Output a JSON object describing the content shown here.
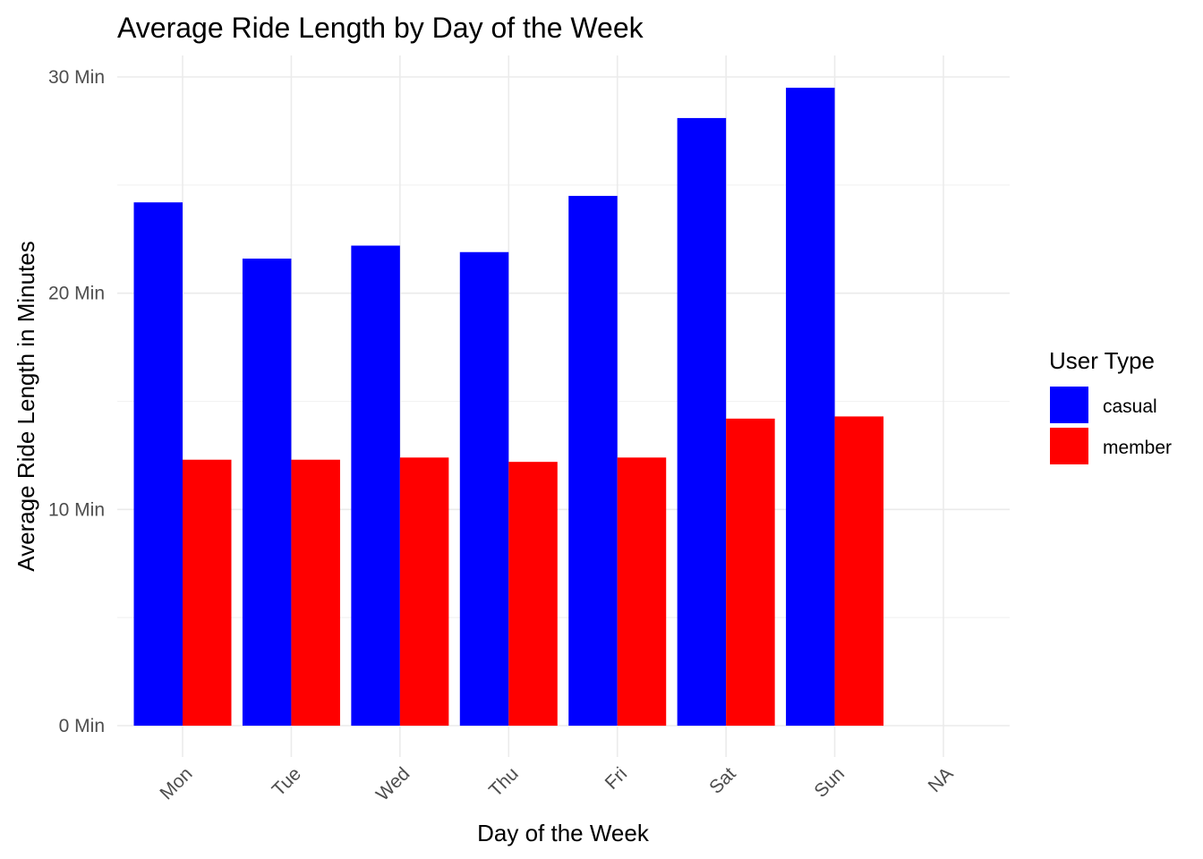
{
  "chart_data": {
    "type": "bar",
    "title": "Average Ride Length by Day of the Week",
    "xlabel": "Day of the Week",
    "ylabel": "Average Ride Length in Minutes",
    "categories": [
      "Mon",
      "Tue",
      "Wed",
      "Thu",
      "Fri",
      "Sat",
      "Sun",
      "NA"
    ],
    "series": [
      {
        "name": "casual",
        "color": "#0000ff",
        "values": [
          24.2,
          21.6,
          22.2,
          21.9,
          24.5,
          28.1,
          29.5,
          null
        ]
      },
      {
        "name": "member",
        "color": "#ff0000",
        "values": [
          12.3,
          12.3,
          12.4,
          12.2,
          12.4,
          14.2,
          14.3,
          null
        ]
      }
    ],
    "ylim": [
      0,
      30
    ],
    "y_ticks": [
      {
        "value": 0,
        "label": "0 Min"
      },
      {
        "value": 10,
        "label": "10 Min"
      },
      {
        "value": 20,
        "label": "20 Min"
      },
      {
        "value": 30,
        "label": "30 Min"
      }
    ],
    "x_tick_rotation": -45,
    "grid": true,
    "legend": {
      "title": "User Type",
      "position": "right",
      "entries": [
        {
          "label": "casual",
          "color": "#0000ff"
        },
        {
          "label": "member",
          "color": "#ff0000"
        }
      ]
    }
  }
}
